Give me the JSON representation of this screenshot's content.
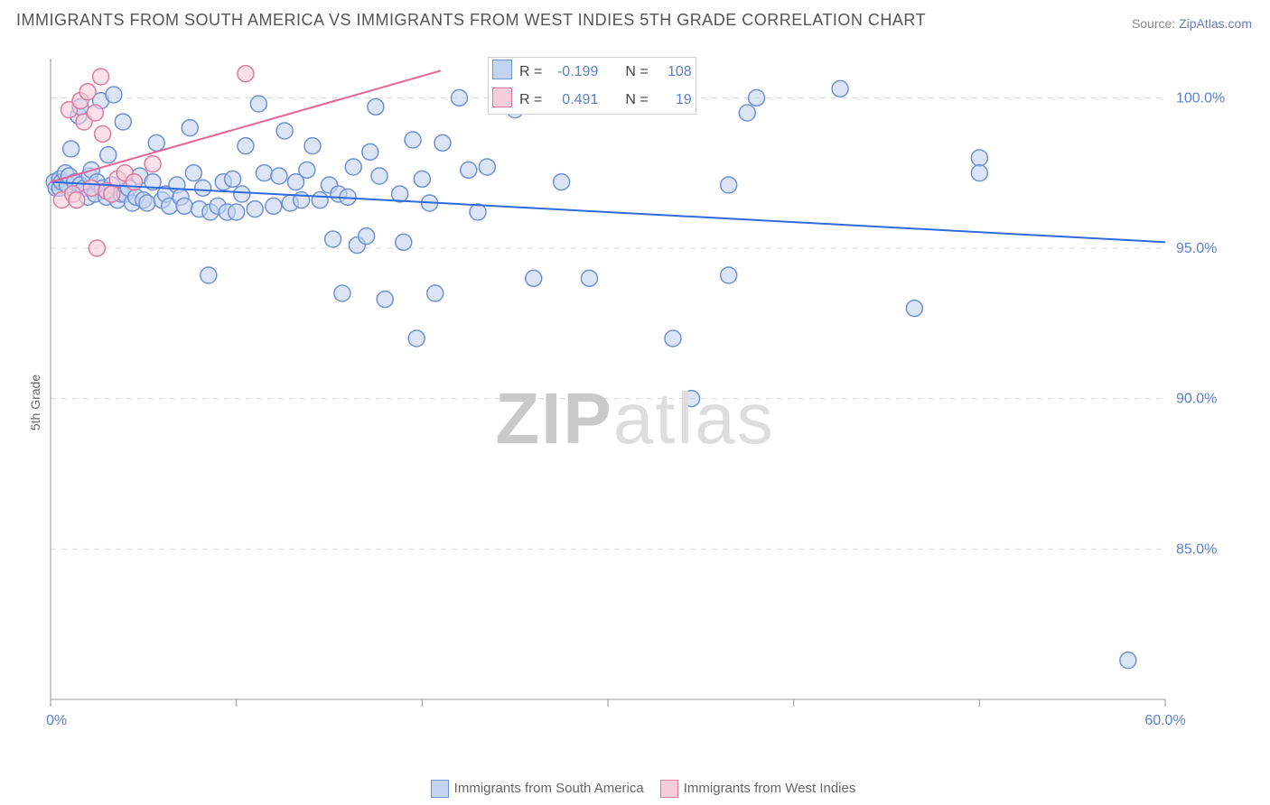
{
  "title": "IMMIGRANTS FROM SOUTH AMERICA VS IMMIGRANTS FROM WEST INDIES 5TH GRADE CORRELATION CHART",
  "source_prefix": "Source: ",
  "source_name": "ZipAtlas.com",
  "ylabel": "5th Grade",
  "watermark_a": "ZIP",
  "watermark_b": "atlas",
  "chart": {
    "type": "scatter",
    "x_min": 0,
    "x_max": 60,
    "y_min": 80,
    "y_max": 101.3,
    "x_ticks": [
      0,
      10,
      20,
      30,
      40,
      50,
      60
    ],
    "x_tick_labels": {
      "0": "0.0%",
      "60": "60.0%"
    },
    "y_ticks": [
      85,
      90,
      95,
      100
    ],
    "y_tick_labels": {
      "85": "85.0%",
      "90": "90.0%",
      "95": "95.0%",
      "100": "100.0%"
    },
    "grid_color": "#d9d9d9",
    "axis_color": "#999999",
    "label_color": "#5b7fcf",
    "bg": "#ffffff",
    "marker_r": 9,
    "marker_stroke_w": 1.5,
    "series": [
      {
        "name": "Immigrants from South America",
        "fill": "#c3d4f0",
        "stroke": "#6f91d6",
        "line_stroke": "#2f6adf",
        "line_w": 2,
        "swatch_fill": "#c3d4f0",
        "swatch_stroke": "#6f91d6",
        "stats": {
          "R": "-0.199",
          "N": "108"
        },
        "trend": {
          "x1": 0,
          "y1": 97.2,
          "x2": 60,
          "y2": 95.2
        },
        "points": [
          [
            0.2,
            97.2
          ],
          [
            0.3,
            97.0
          ],
          [
            0.5,
            97.0
          ],
          [
            0.5,
            97.3
          ],
          [
            0.6,
            97.2
          ],
          [
            0.8,
            97.5
          ],
          [
            0.9,
            97.1
          ],
          [
            1.0,
            97.4
          ],
          [
            1.1,
            98.3
          ],
          [
            1.3,
            97.2
          ],
          [
            1.5,
            99.4
          ],
          [
            1.6,
            99.7
          ],
          [
            1.6,
            97.1
          ],
          [
            1.8,
            97.0
          ],
          [
            2.0,
            96.7
          ],
          [
            2.1,
            97.4
          ],
          [
            2.2,
            97.6
          ],
          [
            2.4,
            96.8
          ],
          [
            2.5,
            97.2
          ],
          [
            2.7,
            99.9
          ],
          [
            2.8,
            97.0
          ],
          [
            3.0,
            96.7
          ],
          [
            3.1,
            98.1
          ],
          [
            3.3,
            97.1
          ],
          [
            3.4,
            100.1
          ],
          [
            3.6,
            96.6
          ],
          [
            3.8,
            96.8
          ],
          [
            3.9,
            99.2
          ],
          [
            4.0,
            96.8
          ],
          [
            4.2,
            97.0
          ],
          [
            4.4,
            96.5
          ],
          [
            4.6,
            96.7
          ],
          [
            4.8,
            97.4
          ],
          [
            5.0,
            96.6
          ],
          [
            5.2,
            96.5
          ],
          [
            5.5,
            97.2
          ],
          [
            5.7,
            98.5
          ],
          [
            6.0,
            96.6
          ],
          [
            6.2,
            96.8
          ],
          [
            6.4,
            96.4
          ],
          [
            6.8,
            97.1
          ],
          [
            7.0,
            96.7
          ],
          [
            7.2,
            96.4
          ],
          [
            7.5,
            99.0
          ],
          [
            7.7,
            97.5
          ],
          [
            8.0,
            96.3
          ],
          [
            8.2,
            97.0
          ],
          [
            8.5,
            94.1
          ],
          [
            8.6,
            96.2
          ],
          [
            9.0,
            96.4
          ],
          [
            9.3,
            97.2
          ],
          [
            9.5,
            96.2
          ],
          [
            9.8,
            97.3
          ],
          [
            10.0,
            96.2
          ],
          [
            10.3,
            96.8
          ],
          [
            10.5,
            98.4
          ],
          [
            11.0,
            96.3
          ],
          [
            11.2,
            99.8
          ],
          [
            11.5,
            97.5
          ],
          [
            12.0,
            96.4
          ],
          [
            12.3,
            97.4
          ],
          [
            12.6,
            98.9
          ],
          [
            12.9,
            96.5
          ],
          [
            13.2,
            97.2
          ],
          [
            13.5,
            96.6
          ],
          [
            13.8,
            97.6
          ],
          [
            14.1,
            98.4
          ],
          [
            14.5,
            96.6
          ],
          [
            15.0,
            97.1
          ],
          [
            15.2,
            95.3
          ],
          [
            15.5,
            96.8
          ],
          [
            15.7,
            93.5
          ],
          [
            16.0,
            96.7
          ],
          [
            16.3,
            97.7
          ],
          [
            16.5,
            95.1
          ],
          [
            17.0,
            95.4
          ],
          [
            17.2,
            98.2
          ],
          [
            17.5,
            99.7
          ],
          [
            17.7,
            97.4
          ],
          [
            18.0,
            93.3
          ],
          [
            18.8,
            96.8
          ],
          [
            19.0,
            95.2
          ],
          [
            19.5,
            98.6
          ],
          [
            19.7,
            92.0
          ],
          [
            20.0,
            97.3
          ],
          [
            20.4,
            96.5
          ],
          [
            20.7,
            93.5
          ],
          [
            21.1,
            98.5
          ],
          [
            22.0,
            100.0
          ],
          [
            22.5,
            97.6
          ],
          [
            23.0,
            96.2
          ],
          [
            23.5,
            97.7
          ],
          [
            25.0,
            99.6
          ],
          [
            26.0,
            94.0
          ],
          [
            27.5,
            97.2
          ],
          [
            28.0,
            100.1
          ],
          [
            29.0,
            94.0
          ],
          [
            33.5,
            92.0
          ],
          [
            34.5,
            90.0
          ],
          [
            36.5,
            97.1
          ],
          [
            36.5,
            94.1
          ],
          [
            37.5,
            99.5
          ],
          [
            38.0,
            100.0
          ],
          [
            42.5,
            100.3
          ],
          [
            46.5,
            93.0
          ],
          [
            50.0,
            98.0
          ],
          [
            50.0,
            97.5
          ],
          [
            58.0,
            81.3
          ]
        ]
      },
      {
        "name": "Immigrants from West Indies",
        "fill": "#f6cddb",
        "stroke": "#df7a9e",
        "line_stroke": "#e96094",
        "line_w": 2,
        "swatch_fill": "#f6cddb",
        "swatch_stroke": "#df7a9e",
        "stats": {
          "R": "0.491",
          "N": "19"
        },
        "trend": {
          "x1": 0,
          "y1": 97.2,
          "x2": 21,
          "y2": 100.9
        },
        "points": [
          [
            0.6,
            96.6
          ],
          [
            1.0,
            99.6
          ],
          [
            1.2,
            96.8
          ],
          [
            1.4,
            96.6
          ],
          [
            1.6,
            99.9
          ],
          [
            1.8,
            99.2
          ],
          [
            2.0,
            100.2
          ],
          [
            2.2,
            97.0
          ],
          [
            2.4,
            99.5
          ],
          [
            2.5,
            95.0
          ],
          [
            2.7,
            100.7
          ],
          [
            2.8,
            98.8
          ],
          [
            3.0,
            96.9
          ],
          [
            3.3,
            96.8
          ],
          [
            3.6,
            97.3
          ],
          [
            4.0,
            97.5
          ],
          [
            4.5,
            97.2
          ],
          [
            5.5,
            97.8
          ],
          [
            10.5,
            100.8
          ]
        ]
      }
    ]
  },
  "legend_top": [
    {
      "swatch_fill": "#c3d4f0",
      "swatch_stroke": "#6f91d6",
      "r_label": "R =",
      "r_val": "-0.199",
      "n_label": "N =",
      "n_val": "108"
    },
    {
      "swatch_fill": "#f6cddb",
      "swatch_stroke": "#df7a9e",
      "r_label": "R =",
      "r_val": "0.491",
      "n_label": "N =",
      "n_val": "19"
    }
  ],
  "legend_bottom": [
    {
      "swatch_fill": "#c3d4f0",
      "swatch_stroke": "#6f91d6",
      "label": "Immigrants from South America"
    },
    {
      "swatch_fill": "#f6cddb",
      "swatch_stroke": "#df7a9e",
      "label": "Immigrants from West Indies"
    }
  ]
}
